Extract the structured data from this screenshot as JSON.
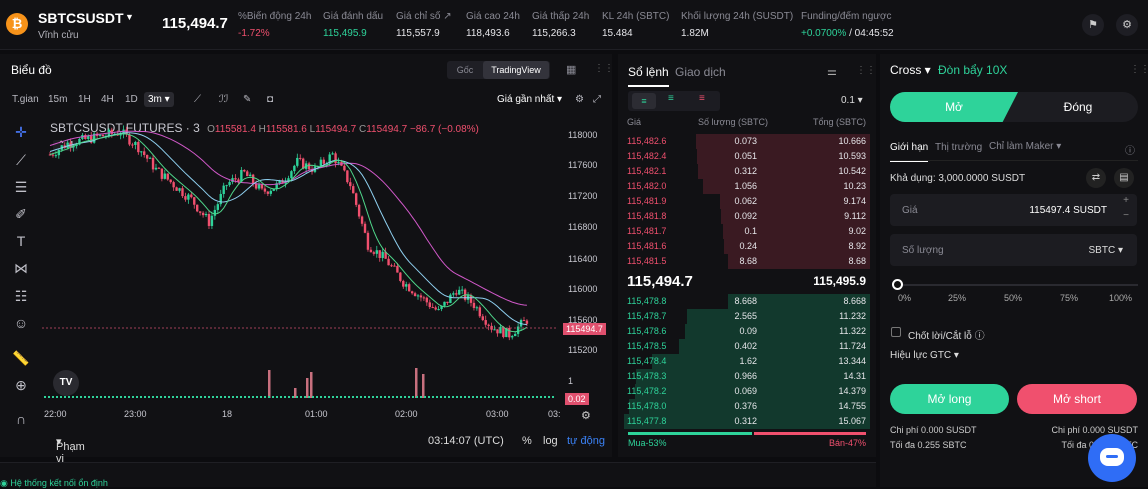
{
  "header": {
    "coin_glyph": "₿",
    "symbol": "SBTCSUSDT",
    "symbol_sub": "Vĩnh cửu",
    "last_price": "115,494.7",
    "stats": [
      {
        "label": "%Biến động 24h",
        "value": "-1.72%",
        "color": "red"
      },
      {
        "label": "Giá đánh dấu",
        "value": "115,495.9",
        "color": "green"
      },
      {
        "label": "Giá chỉ số ↗",
        "value": "115,557.9",
        "color": ""
      },
      {
        "label": "Giá cao 24h",
        "value": "118,493.6",
        "color": ""
      },
      {
        "label": "Giá thấp 24h",
        "value": "115,266.3",
        "color": ""
      },
      {
        "label": "KL 24h (SBTC)",
        "value": "15.484",
        "color": ""
      },
      {
        "label": "Khối lượng 24h (SUSDT)",
        "value": "1.82M",
        "color": ""
      },
      {
        "label": "Funding/đếm ngược",
        "value": "+0.0700%",
        "value2": "/ 04:45:52",
        "color": "green"
      }
    ]
  },
  "chart": {
    "title": "Biểu đồ",
    "view_options": [
      "Gốc",
      "TradingView"
    ],
    "active_view": "TradingView",
    "intervals_label": "T.gian",
    "intervals": [
      "15m",
      "1H",
      "4H",
      "1D"
    ],
    "active_interval": "3m",
    "price_type": "Giá gần nhất",
    "legend_symbol": "SBTCSUSDT FUTURES · 3",
    "legend_o": "115581.4",
    "legend_h": "115581.6",
    "legend_l": "115494.7",
    "legend_c": "115494.7",
    "legend_change": "−86.7 (−0.08%)",
    "indicator_count": "4",
    "last_label": "115494.7",
    "volume_label": "0.02",
    "range_label": "Phạm vi Ngày",
    "clock": "03:14:07 (UTC)",
    "scale_pct": "%",
    "scale_log": "log",
    "scale_auto": "tự động"
  },
  "chart_data": {
    "type": "line",
    "title": "SBTCSUSDT FUTURES · 3",
    "y_ticks": [
      118000.0,
      117600.0,
      117200.0,
      116800.0,
      116400.0,
      116000.0,
      115600.0,
      115200.0
    ],
    "x_ticks": [
      "22:00",
      "23:00",
      "18",
      "01:00",
      "02:00",
      "03:00",
      "03:"
    ],
    "ylim": [
      115000,
      118100
    ],
    "volume_ticks": [
      "1",
      "0"
    ],
    "series": [
      {
        "values": [
          117700,
          117850,
          117900,
          117950,
          118000,
          117800,
          117500,
          117300,
          117100,
          116800,
          117300,
          117450,
          117200,
          117300,
          117600,
          117500,
          117700,
          117300,
          116500,
          116300,
          116000,
          115800,
          115600,
          115900,
          115700,
          115400,
          115300,
          115494.7
        ]
      }
    ]
  },
  "orderbook": {
    "tabs": [
      "Sổ lệnh",
      "Giao dịch"
    ],
    "precision": "0.1",
    "col_price": "Giá",
    "col_qty": "Số lượng (SBTC)",
    "col_total": "Tổng (SBTC)",
    "asks": [
      [
        "115,482.6",
        "0.073",
        "10.666"
      ],
      [
        "115,482.4",
        "0.051",
        "10.593"
      ],
      [
        "115,482.1",
        "0.312",
        "10.542"
      ],
      [
        "115,482.0",
        "1.056",
        "10.23"
      ],
      [
        "115,481.9",
        "0.062",
        "9.174"
      ],
      [
        "115,481.8",
        "0.092",
        "9.112"
      ],
      [
        "115,481.7",
        "0.1",
        "9.02"
      ],
      [
        "115,481.6",
        "0.24",
        "8.92"
      ],
      [
        "115,481.5",
        "8.68",
        "8.68"
      ]
    ],
    "mid_price": "115,494.7",
    "mark_price": "115,495.9",
    "bids": [
      [
        "115,478.8",
        "8.668",
        "8.668"
      ],
      [
        "115,478.7",
        "2.565",
        "11.232"
      ],
      [
        "115,478.6",
        "0.09",
        "11.322"
      ],
      [
        "115,478.5",
        "0.402",
        "11.724"
      ],
      [
        "115,478.4",
        "1.62",
        "13.344"
      ],
      [
        "115,478.3",
        "0.966",
        "14.31"
      ],
      [
        "115,478.2",
        "0.069",
        "14.379"
      ],
      [
        "115,478.0",
        "0.376",
        "14.755"
      ],
      [
        "115,477.8",
        "0.312",
        "15.067"
      ]
    ],
    "buy_pct": "Mua-53%",
    "sell_pct": "Bán-47%"
  },
  "trade": {
    "margin_mode": "Cross",
    "leverage": "Đòn bẩy 10X",
    "open_label": "Mở",
    "close_label": "Đóng",
    "order_types": [
      "Giới hạn",
      "Thị trường",
      "Chỉ làm Maker"
    ],
    "available": "Khả dụng: 3,000.0000 SUSDT",
    "price_label": "Giá",
    "price_value": "115497.4 SUSDT",
    "qty_label": "Số lượng",
    "qty_unit": "SBTC",
    "slider_marks": [
      "0%",
      "25%",
      "50%",
      "75%",
      "100%"
    ],
    "tp_sl": "Chốt lời/Cắt lỗ",
    "tif": "Hiệu lực GTC",
    "long_btn": "Mở long",
    "short_btn": "Mở short",
    "fee_left": "Chi phí 0.000 SUSDT",
    "max_left": "Tối đa 0.255 SBTC",
    "fee_right": "Chi phí 0.000 SUSDT",
    "max_right": "Tối đa 0.255 SBTC"
  },
  "footer": {
    "status": "Hệ thống kết nối ổn định"
  },
  "colors": {
    "green": "#2ed39a",
    "red": "#f0506e",
    "ask_bg": "#3a1a22",
    "bid_bg": "#12392d"
  }
}
